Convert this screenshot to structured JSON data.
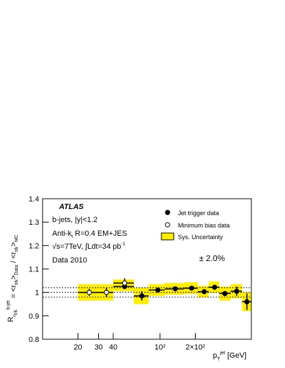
{
  "chart_data": {
    "type": "errorbar",
    "log_x": true,
    "xlim": [
      10,
      600
    ],
    "ylim": [
      0.8,
      1.4
    ],
    "xticks": [
      20,
      30,
      40,
      {
        "value": 100,
        "label": "10²"
      },
      {
        "value": 200,
        "label": "2×10²"
      }
    ],
    "yticks": [
      0.8,
      0.9,
      1,
      1.1,
      1.2,
      1.3,
      1.4
    ],
    "xlabel_parts": [
      "p",
      "T",
      "jet",
      " [GeV]"
    ],
    "ylabel_parts": [
      "R",
      "r",
      "trk",
      "b-jet",
      " = <r",
      "trk",
      ">",
      "Data",
      " / <r",
      "trk",
      ">",
      "MC"
    ],
    "annotations": {
      "experiment": "ATLAS",
      "selection": "b-jets, |y|<1.2",
      "algo": "Anti-k",
      "algo_sub": "t",
      "algo_rest": " R=0.4 EM+JES",
      "energy": "√s=7TeV, ∫Ldt=34 pb",
      "energy_sup": "-1",
      "dataset": "Data 2010",
      "band_label": "± 2.0%"
    },
    "reference_lines": [
      0.98,
      1,
      1.02
    ],
    "systematics": {
      "name": "Sys. Uncertainty",
      "color": "#ffee00",
      "xlow": [
        20,
        30,
        40,
        60,
        80,
        110,
        160,
        210,
        260,
        320,
        400,
        500
      ],
      "xhigh": [
        30,
        40,
        60,
        80,
        110,
        160,
        210,
        260,
        320,
        400,
        500,
        600
      ],
      "values": [
        1.0,
        1.0,
        1.03,
        0.985,
        1.01,
        1.015,
        1.018,
        1.003,
        1.022,
        0.995,
        1.005,
        0.96
      ],
      "errors": [
        0.035,
        0.035,
        0.025,
        0.035,
        0.025,
        0.025,
        0.025,
        0.025,
        0.025,
        0.03,
        0.03,
        0.04
      ]
    },
    "series": [
      {
        "name": "Jet trigger data",
        "marker": "filled",
        "color": "#000000",
        "x": [
          50,
          70,
          96,
          135,
          186,
          238,
          292,
          357,
          450,
          550
        ],
        "xlow": [
          40,
          60,
          80,
          110,
          160,
          210,
          260,
          320,
          400,
          500
        ],
        "xhigh": [
          60,
          80,
          110,
          160,
          210,
          260,
          320,
          400,
          500,
          600
        ],
        "values": [
          1.025,
          0.985,
          1.01,
          1.015,
          1.018,
          1.003,
          1.022,
          0.995,
          1.005,
          0.96
        ],
        "yerr": [
          0.01,
          0.02,
          0.008,
          0.008,
          0.008,
          0.008,
          0.008,
          0.01,
          0.02,
          0.035
        ]
      },
      {
        "name": "Minimum bias data",
        "marker": "open",
        "color": "#000000",
        "x": [
          25,
          35,
          50
        ],
        "xlow": [
          20,
          30,
          40
        ],
        "xhigh": [
          30,
          40,
          60
        ],
        "values": [
          1.0,
          1.0,
          1.04
        ],
        "yerr": [
          0.015,
          0.02,
          0.02
        ]
      }
    ]
  }
}
